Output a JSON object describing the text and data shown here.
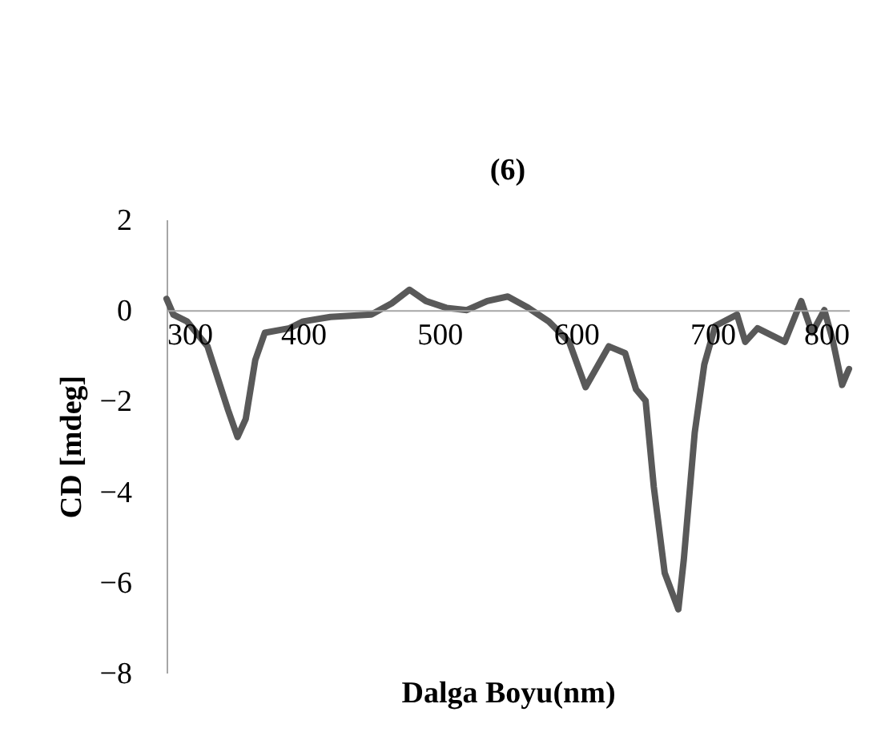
{
  "chart_data": {
    "type": "line",
    "title": "(6)",
    "xlabel": "Dalga Boyu(nm)",
    "ylabel": "CD [mdeg]",
    "x": [
      300,
      305,
      315,
      330,
      345,
      352,
      358,
      365,
      372,
      390,
      400,
      420,
      450,
      465,
      478,
      490,
      505,
      520,
      535,
      550,
      565,
      580,
      595,
      607,
      624,
      636,
      644,
      651,
      657,
      665,
      675,
      679,
      687,
      694,
      702,
      718,
      724,
      733,
      753,
      765,
      773,
      782,
      788,
      795,
      800
    ],
    "series": [
      {
        "color": "#595959",
        "values": [
          0.25,
          -0.1,
          -0.25,
          -0.8,
          -2.2,
          -2.8,
          -2.4,
          -1.1,
          -0.5,
          -0.4,
          -0.25,
          -0.15,
          -0.1,
          0.15,
          0.45,
          0.2,
          0.05,
          0,
          0.2,
          0.3,
          0.05,
          -0.25,
          -0.7,
          -1.7,
          -0.8,
          -0.95,
          -1.75,
          -2.0,
          -3.9,
          -5.8,
          -6.6,
          -5.5,
          -2.7,
          -1.2,
          -0.35,
          -0.1,
          -0.7,
          -0.4,
          -0.7,
          0.2,
          -0.5,
          0,
          -0.65,
          -1.65,
          -1.3
        ]
      }
    ],
    "xlim": [
      300,
      800
    ],
    "xticks": [
      300,
      400,
      500,
      600,
      700,
      800
    ],
    "ylim": [
      -8,
      2
    ],
    "yticks": [
      -8,
      -6,
      -4,
      -2,
      0,
      2
    ],
    "grid": false,
    "marker": "none",
    "line_style": "solid"
  }
}
